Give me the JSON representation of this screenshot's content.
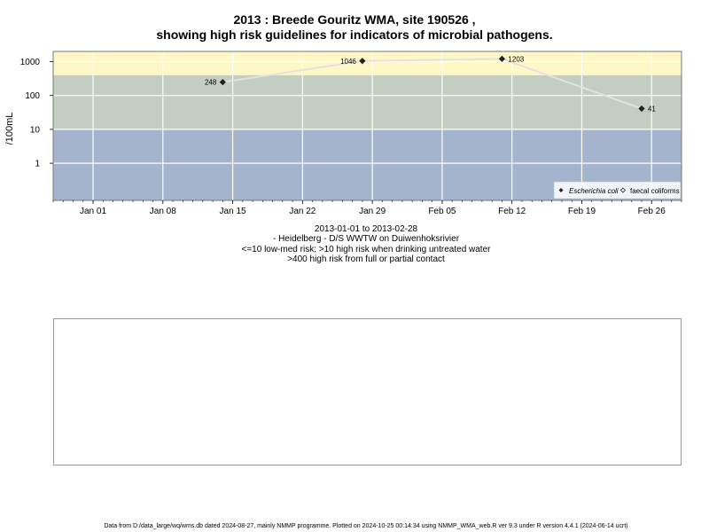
{
  "title_line1": "2013 : Breede Gouritz WMA, site 190526 ,",
  "title_line2": "showing high risk guidelines for indicators of microbial pathogens.",
  "caption": {
    "line1": "2013-01-01 to 2013-02-28",
    "line2": "- Heidelberg - D/S WWTW on Duiwenhoksrivier",
    "line3": "<=10 low-med risk; >10 high risk when drinking untreated water",
    "line4": ">400 high risk from full or partial contact"
  },
  "footer": "Data from D:/data_large/wq/wms.db dated 2024-08-27, mainly NMMP programme. Plotted on 2024-10-25 00:14:34 using NMMP_WMA_web.R ver 9.3 under R version 4.4.1 (2024-06-14 ucrt)",
  "chart_data": {
    "type": "line",
    "title": "2013 : Breede Gouritz WMA, site 190526 , showing high risk guidelines for indicators of microbial pathogens.",
    "ylabel": "/100mL",
    "xlabel": "",
    "y_scale": "log10",
    "ylim": [
      0.08,
      2000
    ],
    "xlim": [
      "2012-12-28",
      "2013-03-01"
    ],
    "y_ticks": [
      {
        "value": 1,
        "label": "1"
      },
      {
        "value": 10,
        "label": "10"
      },
      {
        "value": 100,
        "label": "100"
      },
      {
        "value": 1000,
        "label": "1000"
      }
    ],
    "x_ticks": [
      {
        "date": "2013-01-01",
        "label": "Jan 01"
      },
      {
        "date": "2013-01-08",
        "label": "Jan 08"
      },
      {
        "date": "2013-01-15",
        "label": "Jan 15"
      },
      {
        "date": "2013-01-22",
        "label": "Jan 22"
      },
      {
        "date": "2013-01-29",
        "label": "Jan 29"
      },
      {
        "date": "2013-02-05",
        "label": "Feb 05"
      },
      {
        "date": "2013-02-12",
        "label": "Feb 12"
      },
      {
        "date": "2013-02-19",
        "label": "Feb 19"
      },
      {
        "date": "2013-02-26",
        "label": "Feb 26"
      }
    ],
    "bands": [
      {
        "from": 0.08,
        "to": 10,
        "color": "#a3b4cc"
      },
      {
        "from": 10,
        "to": 400,
        "color": "#c3cdc1"
      },
      {
        "from": 400,
        "to": 2000,
        "color": "#fef8c6"
      }
    ],
    "series": [
      {
        "name": "Escherichia coli",
        "marker": "filled-diamond",
        "line_color": "#e2e2e2",
        "points": [
          {
            "date": "2013-01-14",
            "value": 248,
            "label": "248"
          },
          {
            "date": "2013-01-28",
            "value": 1046,
            "label": "1046"
          },
          {
            "date": "2013-02-11",
            "value": 1203,
            "label": "1203"
          },
          {
            "date": "2013-02-25",
            "value": 41,
            "label": "41"
          }
        ]
      },
      {
        "name": "faecal coliforms",
        "marker": "open-diamond",
        "points": []
      }
    ],
    "legend": {
      "position": "bottom-right"
    },
    "grid": true
  }
}
